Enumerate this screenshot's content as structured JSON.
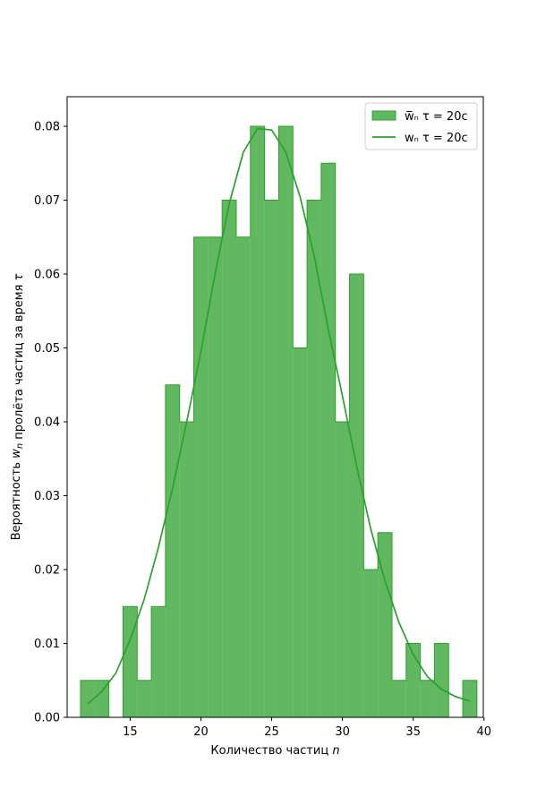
{
  "chart_data": {
    "type": "bar",
    "xlabel": "Количество частиц n",
    "ylabel": "Вероятность w_n пролёта частиц за время τ",
    "xlim": [
      10.55,
      39.95
    ],
    "ylim": [
      0,
      0.084
    ],
    "xticks": [
      15,
      20,
      25,
      30,
      35,
      40
    ],
    "yticks": [
      0.0,
      0.01,
      0.02,
      0.03,
      0.04,
      0.05,
      0.06,
      0.07,
      0.08
    ],
    "grid": false,
    "legend_location": "upper right",
    "series": [
      {
        "name": "w̅ₙ τ = 20c",
        "kind": "histogram",
        "color": "#2ca02c",
        "bins": [
          {
            "left": 11.5,
            "right": 12.5,
            "value": 0.005
          },
          {
            "left": 12.5,
            "right": 13.5,
            "value": 0.005
          },
          {
            "left": 13.5,
            "right": 14.5,
            "value": 0.0
          },
          {
            "left": 14.5,
            "right": 15.5,
            "value": 0.015
          },
          {
            "left": 15.5,
            "right": 16.5,
            "value": 0.005
          },
          {
            "left": 16.5,
            "right": 17.5,
            "value": 0.015
          },
          {
            "left": 17.5,
            "right": 18.5,
            "value": 0.045
          },
          {
            "left": 18.5,
            "right": 19.5,
            "value": 0.04
          },
          {
            "left": 19.5,
            "right": 20.5,
            "value": 0.065
          },
          {
            "left": 20.5,
            "right": 21.5,
            "value": 0.065
          },
          {
            "left": 21.5,
            "right": 22.5,
            "value": 0.07
          },
          {
            "left": 22.5,
            "right": 23.5,
            "value": 0.065
          },
          {
            "left": 23.5,
            "right": 24.5,
            "value": 0.08
          },
          {
            "left": 24.5,
            "right": 25.5,
            "value": 0.07
          },
          {
            "left": 25.5,
            "right": 26.5,
            "value": 0.08
          },
          {
            "left": 26.5,
            "right": 27.5,
            "value": 0.05
          },
          {
            "left": 27.5,
            "right": 28.5,
            "value": 0.07
          },
          {
            "left": 28.5,
            "right": 29.5,
            "value": 0.075
          },
          {
            "left": 29.5,
            "right": 30.5,
            "value": 0.04
          },
          {
            "left": 30.5,
            "right": 31.5,
            "value": 0.06
          },
          {
            "left": 31.5,
            "right": 32.5,
            "value": 0.02
          },
          {
            "left": 32.5,
            "right": 33.5,
            "value": 0.025
          },
          {
            "left": 33.5,
            "right": 34.5,
            "value": 0.005
          },
          {
            "left": 34.5,
            "right": 35.5,
            "value": 0.01
          },
          {
            "left": 35.5,
            "right": 36.5,
            "value": 0.005
          },
          {
            "left": 36.5,
            "right": 37.5,
            "value": 0.01
          },
          {
            "left": 37.5,
            "right": 38.5,
            "value": 0.0
          },
          {
            "left": 38.5,
            "right": 39.5,
            "value": 0.005
          }
        ]
      },
      {
        "name": "wₙ τ = 20c",
        "kind": "line",
        "color": "#2ca02c",
        "x": [
          12,
          13,
          14,
          15,
          16,
          17,
          18,
          19,
          20,
          21,
          22,
          23,
          24,
          25,
          26,
          27,
          28,
          29,
          30,
          31,
          32,
          33,
          34,
          35,
          36,
          37,
          38,
          39
        ],
        "y": [
          0.0018,
          0.0035,
          0.006,
          0.0105,
          0.016,
          0.023,
          0.031,
          0.04,
          0.0495,
          0.06,
          0.0695,
          0.0765,
          0.0797,
          0.0795,
          0.0765,
          0.0705,
          0.0625,
          0.0525,
          0.0435,
          0.034,
          0.0255,
          0.0185,
          0.0128,
          0.0085,
          0.0055,
          0.0038,
          0.0028,
          0.0022
        ]
      }
    ]
  }
}
